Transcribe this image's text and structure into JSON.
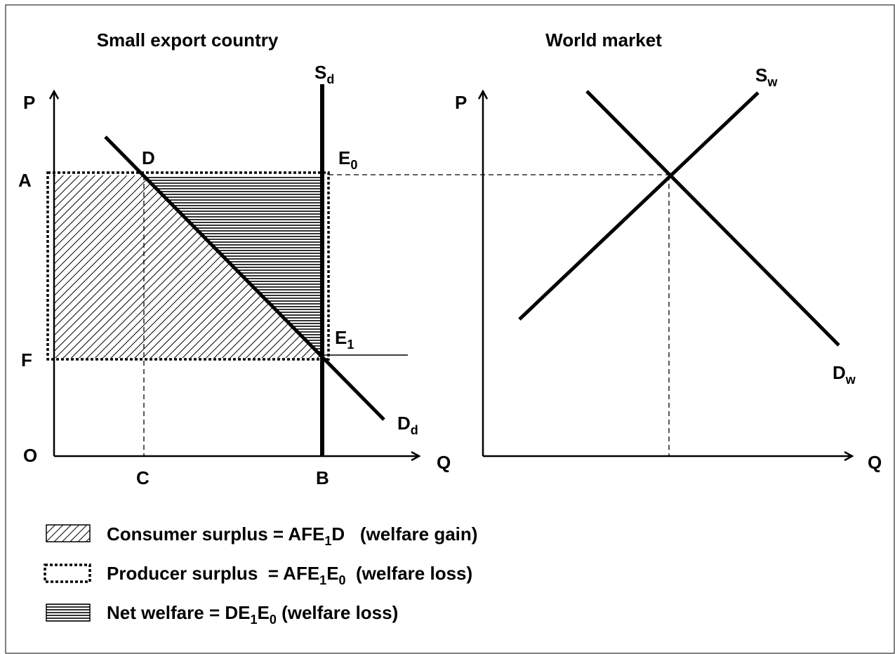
{
  "left_panel": {
    "title": "Small export country",
    "labels": {
      "price_axis": [
        "P"
      ],
      "quantity_axis": [
        "Q"
      ],
      "origin": [
        "O"
      ],
      "point_a": [
        "A"
      ],
      "point_f": [
        "F"
      ],
      "point_c": [
        "C"
      ],
      "point_b": [
        "B"
      ],
      "point_d": [
        "D"
      ],
      "e0": [
        "E",
        "0"
      ],
      "e1": [
        "E",
        "1"
      ],
      "supply": [
        "S",
        "d"
      ],
      "demand": [
        "D",
        "d"
      ]
    }
  },
  "right_panel": {
    "title": "World market",
    "labels": {
      "price_axis": [
        "P"
      ],
      "quantity_axis": [
        "Q"
      ],
      "supply": [
        "S",
        "w"
      ],
      "demand": [
        "D",
        "w"
      ]
    }
  },
  "legend": {
    "items": [
      [
        "Consumer surplus = AFE",
        "1",
        "D   (welfare gain)"
      ],
      [
        "Producer surplus  = AFE",
        "1",
        "E",
        "0",
        "  (welfare loss)"
      ],
      [
        "Net welfare = DE",
        "1",
        "E",
        "0",
        " (welfare loss)"
      ]
    ]
  }
}
